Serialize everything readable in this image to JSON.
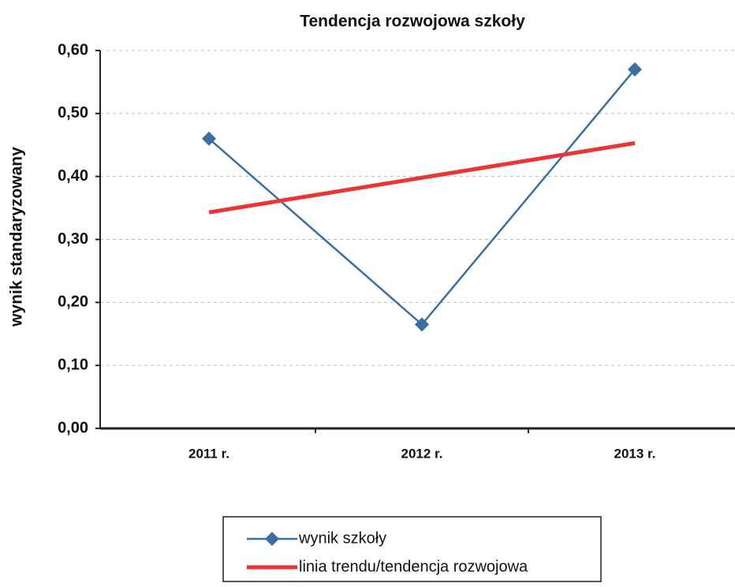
{
  "chart_data": {
    "type": "line",
    "title": "Tendencja rozwojowa szkoły",
    "y_label": "wynik standaryzowany",
    "categories": [
      "2011 r.",
      "2012 r.",
      "2013 r."
    ],
    "series": [
      {
        "name": "wynik szkoły",
        "color": "#3a6ea5",
        "marker": "diamond",
        "values": [
          0.46,
          0.165,
          0.57
        ]
      },
      {
        "name": "linia trendu/tendencja rozwojowa",
        "color": "#ee3333",
        "marker": "none",
        "values": [
          0.343,
          0.398,
          0.453
        ]
      }
    ],
    "ylim": [
      0,
      0.6
    ],
    "yticks": [
      {
        "value": 0,
        "label": "0,00"
      },
      {
        "value": 0.1,
        "label": "0,10"
      },
      {
        "value": 0.2,
        "label": "0,20"
      },
      {
        "value": 0.3,
        "label": "0,30"
      },
      {
        "value": 0.4,
        "label": "0,40"
      },
      {
        "value": 0.5,
        "label": "0,50"
      },
      {
        "value": 0.6,
        "label": "0,60"
      }
    ],
    "grid": true,
    "legend": "bottom"
  }
}
